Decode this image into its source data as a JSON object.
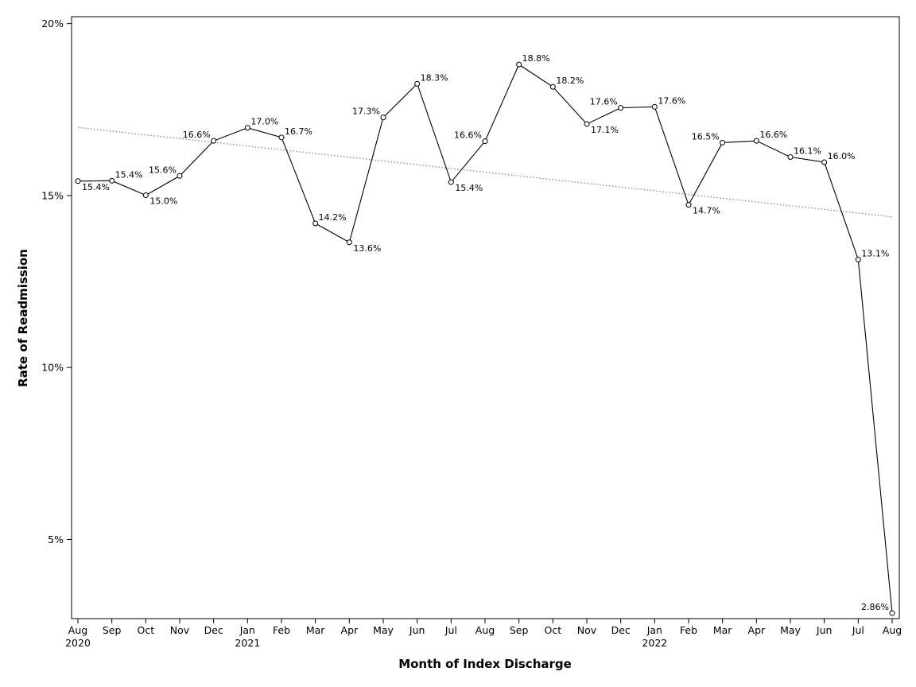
{
  "chart_data": {
    "type": "line",
    "title": "",
    "xlabel": "Month of Index Discharge",
    "ylabel": "Rate of Readmission",
    "ylim": [
      2.7,
      20.2
    ],
    "yticks": [
      {
        "value": 5,
        "label": "5%"
      },
      {
        "value": 10,
        "label": "10%"
      },
      {
        "value": 15,
        "label": "15%"
      },
      {
        "value": 20,
        "label": "20%"
      }
    ],
    "grid": false,
    "legend": "none",
    "categories": [
      "Aug",
      "Sep",
      "Oct",
      "Nov",
      "Dec",
      "Jan",
      "Feb",
      "Mar",
      "Apr",
      "May",
      "Jun",
      "Jul",
      "Aug",
      "Sep",
      "Oct",
      "Nov",
      "Dec",
      "Jan",
      "Feb",
      "Mar",
      "Apr",
      "May",
      "Jun",
      "Jul",
      "Aug"
    ],
    "year_labels": [
      {
        "index": 0,
        "label": "2020"
      },
      {
        "index": 5,
        "label": "2021"
      },
      {
        "index": 17,
        "label": "2022"
      }
    ],
    "series": [
      {
        "values": [
          15.42,
          15.43,
          15.01,
          15.57,
          16.59,
          16.97,
          16.69,
          14.19,
          13.64,
          17.27,
          18.25,
          15.39,
          16.58,
          18.81,
          18.16,
          17.08,
          17.55,
          17.58,
          14.73,
          16.54,
          16.59,
          16.12,
          15.97,
          13.14,
          2.86
        ],
        "labels": [
          "15.4%",
          "15.4%",
          "15.0%",
          "15.6%",
          "16.6%",
          "17.0%",
          "16.7%",
          "14.2%",
          "13.6%",
          "17.3%",
          "18.3%",
          "15.4%",
          "16.6%",
          "18.8%",
          "18.2%",
          "17.1%",
          "17.6%",
          "17.6%",
          "14.7%",
          "16.5%",
          "16.6%",
          "16.1%",
          "16.0%",
          "13.1%",
          "2.86%"
        ],
        "label_positions": [
          "below-right",
          "above-right",
          "below-right",
          "above-left",
          "above-left",
          "above-right",
          "above-right",
          "above-right",
          "below-right",
          "above-left",
          "above-right",
          "below-right",
          "above-left",
          "above-right",
          "above-right",
          "below-right",
          "above-left",
          "above-right",
          "below-right",
          "above-left",
          "above-right",
          "above-right",
          "above-right",
          "above-right",
          "above-left"
        ]
      }
    ],
    "trendline": {
      "start": 16.98,
      "end": 14.38,
      "style": "dotted",
      "color": "#888888"
    },
    "colors": {
      "line": "#000000",
      "marker": "#000000",
      "axis": "#000000"
    }
  }
}
